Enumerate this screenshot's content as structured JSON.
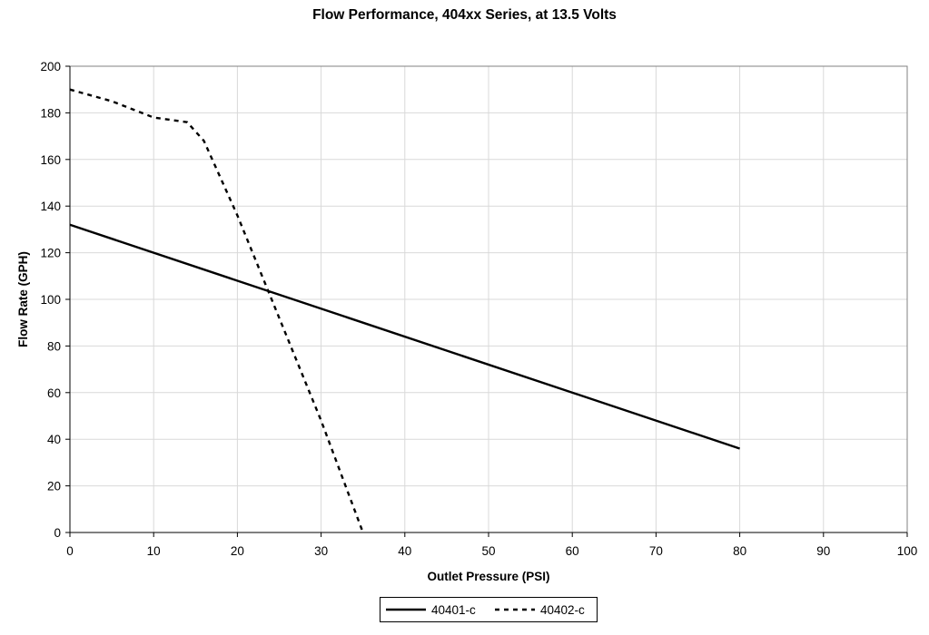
{
  "chart_data": {
    "type": "line",
    "title": "Flow Performance, 404xx  Series, at 13.5 Volts",
    "xlabel": "Outlet Pressure (PSI)",
    "ylabel": "Flow Rate (GPH)",
    "xlim": [
      0,
      100
    ],
    "ylim": [
      0,
      200
    ],
    "xticks": [
      "0",
      "10",
      "20",
      "30",
      "40",
      "50",
      "60",
      "70",
      "80",
      "90",
      "100"
    ],
    "yticks": [
      "0",
      "20",
      "40",
      "60",
      "80",
      "100",
      "120",
      "140",
      "160",
      "180",
      "200"
    ],
    "grid": true,
    "legend_position": "bottom",
    "series": [
      {
        "name": "40401-c",
        "style": "solid",
        "color": "#000000",
        "x": [
          0,
          80
        ],
        "y": [
          132,
          36
        ]
      },
      {
        "name": "40402-c",
        "style": "dashed",
        "color": "#000000",
        "x": [
          0,
          5,
          10,
          14,
          16,
          20,
          25,
          30,
          35
        ],
        "y": [
          190,
          185,
          178,
          176,
          168,
          136,
          92,
          48,
          0
        ]
      }
    ]
  }
}
